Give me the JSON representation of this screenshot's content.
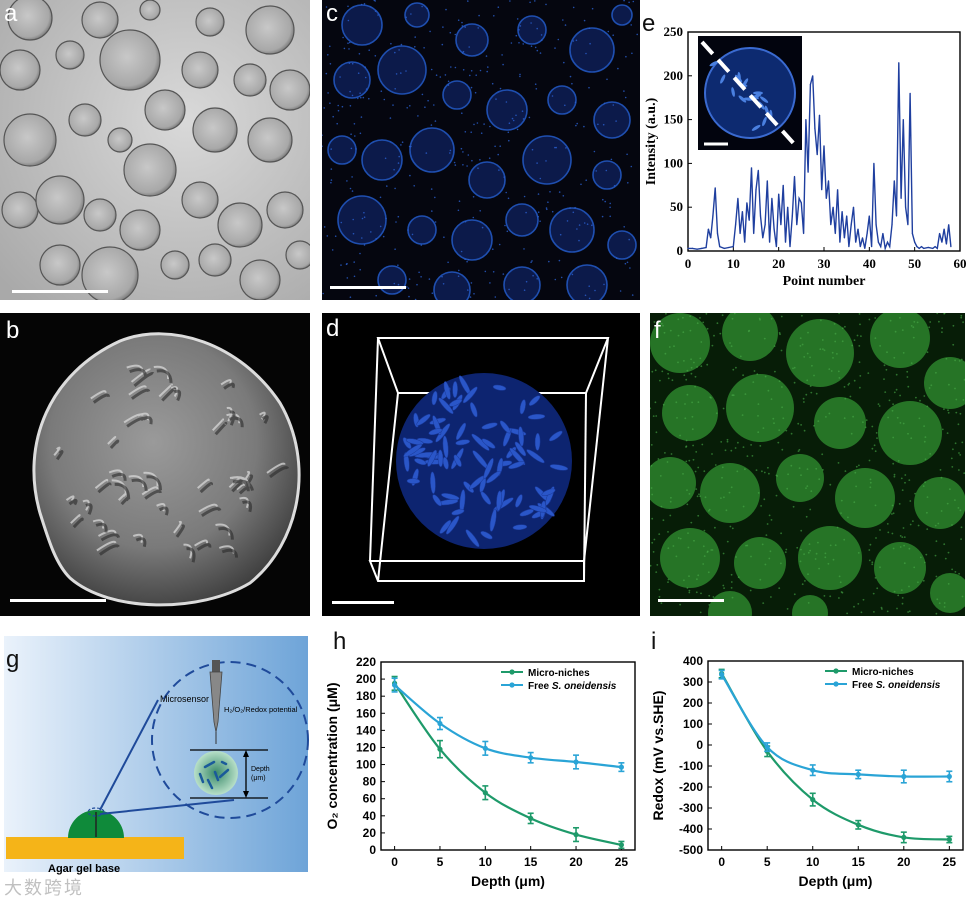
{
  "panels": {
    "a": {
      "label": "a"
    },
    "b": {
      "label": "b"
    },
    "c": {
      "label": "c"
    },
    "d": {
      "label": "d"
    },
    "e": {
      "label": "e"
    },
    "f": {
      "label": "f"
    },
    "g": {
      "label": "g"
    },
    "h": {
      "label": "h"
    },
    "i": {
      "label": "i"
    }
  },
  "schematic": {
    "microsensor": "Microsensor",
    "probe_label": "H₂/O₂/Redox potential",
    "depth_label": "Depth",
    "depth_unit": "(μm)",
    "base_label": "Agar gel base"
  },
  "watermark": "大数跨境",
  "chart_data": [
    {
      "panel": "e",
      "type": "line",
      "xlabel": "Point number",
      "ylabel": "Intensity (a.u.)",
      "xlim": [
        0,
        60
      ],
      "ylim": [
        0,
        250
      ],
      "xticks": [
        0,
        10,
        20,
        30,
        40,
        50,
        60
      ],
      "yticks": [
        0,
        50,
        100,
        150,
        200,
        250
      ],
      "color": "#1f3f9f",
      "x": [
        0,
        1,
        2,
        3,
        4,
        4.5,
        5,
        5.5,
        6,
        6.5,
        7,
        8,
        9,
        10,
        10.5,
        11,
        11.5,
        12,
        12.5,
        13,
        13.5,
        14,
        14.5,
        15,
        15.5,
        16,
        16.5,
        17,
        17.5,
        18,
        18.5,
        19,
        19.5,
        20,
        20.5,
        21,
        21.5,
        22,
        22.5,
        23,
        23.5,
        24,
        24.5,
        25,
        25.5,
        26,
        26.5,
        27,
        27.5,
        28,
        28.5,
        29,
        29.5,
        30,
        30.5,
        31,
        31.5,
        32,
        32.5,
        33,
        33.5,
        34,
        34.5,
        35,
        35.5,
        36,
        36.5,
        37,
        37.5,
        38,
        38.5,
        39,
        39.5,
        40,
        40.5,
        41,
        41.5,
        42,
        42.5,
        43,
        43.5,
        44,
        44.5,
        45,
        45.5,
        46,
        46.5,
        47,
        47.5,
        48,
        48.5,
        49,
        49.5,
        50,
        50.5,
        51,
        51.5,
        52,
        53,
        54,
        54.5,
        55,
        55.5,
        56,
        56.5,
        57,
        57.5,
        58
      ],
      "y": [
        3,
        3,
        2,
        3,
        4,
        25,
        15,
        40,
        72,
        20,
        5,
        3,
        4,
        5,
        30,
        60,
        20,
        45,
        10,
        55,
        35,
        95,
        20,
        70,
        92,
        40,
        15,
        30,
        80,
        10,
        60,
        25,
        5,
        65,
        30,
        75,
        10,
        50,
        5,
        40,
        85,
        30,
        60,
        55,
        20,
        150,
        90,
        190,
        200,
        140,
        110,
        155,
        70,
        120,
        60,
        80,
        30,
        50,
        20,
        70,
        10,
        45,
        15,
        40,
        5,
        30,
        50,
        10,
        25,
        5,
        15,
        3,
        20,
        40,
        5,
        100,
        30,
        10,
        5,
        20,
        3,
        10,
        5,
        30,
        80,
        40,
        215,
        60,
        150,
        50,
        30,
        180,
        20,
        10,
        5,
        3,
        5,
        3,
        4,
        3,
        5,
        3,
        20,
        10,
        25,
        8,
        30,
        5
      ]
    },
    {
      "panel": "h",
      "type": "line",
      "xlabel": "Depth (μm)",
      "ylabel": "O₂ concentration (μM)",
      "xlim": [
        -1.5,
        26.5
      ],
      "ylim": [
        0,
        220
      ],
      "xticks": [
        0,
        5,
        10,
        15,
        20,
        25
      ],
      "yticks": [
        0,
        20,
        40,
        60,
        80,
        100,
        120,
        140,
        160,
        180,
        200,
        220
      ],
      "series": [
        {
          "name": "Micro-niches",
          "color": "#1e9a6a",
          "x": [
            0,
            5,
            10,
            15,
            20,
            25
          ],
          "values": [
            195,
            118,
            67,
            37,
            18,
            6
          ],
          "errors": [
            8,
            10,
            8,
            6,
            8,
            4
          ]
        },
        {
          "name": "Free S. oneidensis",
          "color": "#2aa4d6",
          "x": [
            0,
            5,
            10,
            15,
            20,
            25
          ],
          "values": [
            193,
            148,
            119,
            108,
            103,
            97
          ],
          "errors": [
            8,
            7,
            8,
            6,
            8,
            5
          ]
        }
      ]
    },
    {
      "panel": "i",
      "type": "line",
      "xlabel": "Depth (μm)",
      "ylabel": "Redox (mV vs.SHE)",
      "xlim": [
        -1.5,
        26.5
      ],
      "ylim": [
        -500,
        400
      ],
      "xticks": [
        0,
        5,
        10,
        15,
        20,
        25
      ],
      "yticks": [
        400,
        300,
        200,
        100,
        0,
        -100,
        -200,
        -300,
        -400,
        -500
      ],
      "series": [
        {
          "name": "Micro-niches",
          "color": "#1e9a6a",
          "x": [
            0,
            5,
            10,
            15,
            20,
            25
          ],
          "values": [
            340,
            -30,
            -260,
            -380,
            -440,
            -450
          ],
          "errors": [
            20,
            25,
            30,
            20,
            25,
            15
          ]
        },
        {
          "name": "Free S. oneidensis",
          "color": "#2aa4d6",
          "x": [
            0,
            5,
            10,
            15,
            20,
            25
          ],
          "values": [
            335,
            -10,
            -120,
            -140,
            -150,
            -150
          ],
          "errors": [
            20,
            20,
            25,
            20,
            30,
            25
          ]
        }
      ]
    }
  ]
}
